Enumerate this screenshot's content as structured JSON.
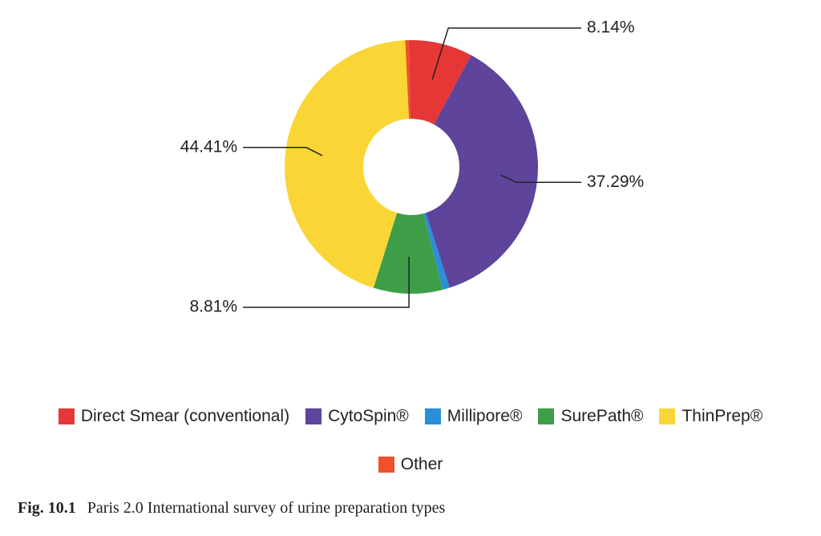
{
  "chart_data": {
    "type": "donut",
    "categories": [
      "Direct Smear (conventional)",
      "CytoSpin®",
      "Millipore®",
      "SurePath®",
      "ThinPrep®",
      "Other"
    ],
    "values": [
      8.14,
      37.29,
      0.9,
      8.81,
      44.41,
      0.45
    ],
    "value_labels": [
      "8.14%",
      "37.29%",
      null,
      "8.81%",
      "44.41%",
      null
    ],
    "colors": [
      "#e53836",
      "#5e449b",
      "#2b8fd8",
      "#3e9e48",
      "#f9d636",
      "#f0512b"
    ],
    "legend": "bottom"
  },
  "caption": {
    "label": "Fig. 10.1",
    "text": "Paris 2.0 International survey of urine preparation types"
  }
}
